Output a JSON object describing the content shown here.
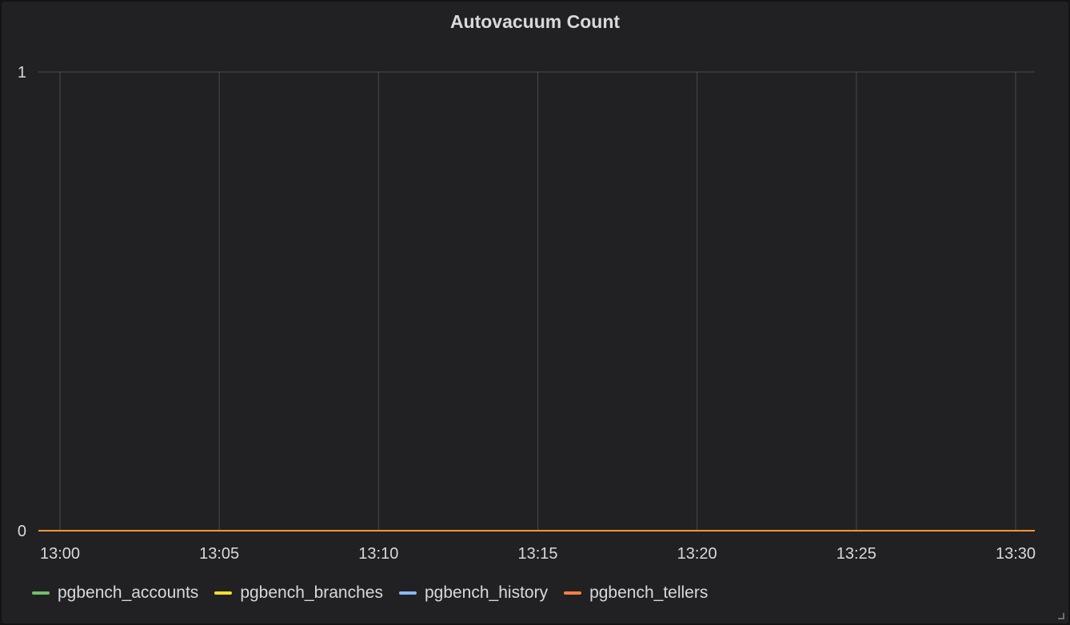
{
  "panel": {
    "title": "Autovacuum Count"
  },
  "chart_data": {
    "type": "line",
    "title": "Autovacuum Count",
    "xlabel": "",
    "ylabel": "",
    "x": [
      "13:00",
      "13:05",
      "13:10",
      "13:15",
      "13:20",
      "13:25",
      "13:30"
    ],
    "x_ticks": [
      "13:00",
      "13:05",
      "13:10",
      "13:15",
      "13:20",
      "13:25",
      "13:30"
    ],
    "y_ticks": [
      "0",
      "1"
    ],
    "ylim": [
      0,
      1
    ],
    "grid": true,
    "legend_position": "bottom",
    "series": [
      {
        "name": "pgbench_accounts",
        "color": "#73bf69",
        "values": [
          0,
          0,
          0,
          0,
          0,
          0,
          0
        ]
      },
      {
        "name": "pgbench_branches",
        "color": "#fade2a",
        "values": [
          0,
          0,
          0,
          0,
          0,
          0,
          0
        ]
      },
      {
        "name": "pgbench_history",
        "color": "#5794f2",
        "values": [
          0,
          0,
          0,
          0,
          0,
          0,
          0
        ]
      },
      {
        "name": "pgbench_tellers",
        "color": "#ff9830",
        "values": [
          0,
          0,
          0,
          0,
          0,
          0,
          0
        ]
      }
    ]
  },
  "legend": {
    "items": [
      {
        "label": "pgbench_accounts",
        "color": "#73bf69"
      },
      {
        "label": "pgbench_branches",
        "color": "#fade2a"
      },
      {
        "label": "pgbench_history",
        "color": "#8ab8ff"
      },
      {
        "label": "pgbench_tellers",
        "color": "#ff7f3f"
      }
    ]
  }
}
